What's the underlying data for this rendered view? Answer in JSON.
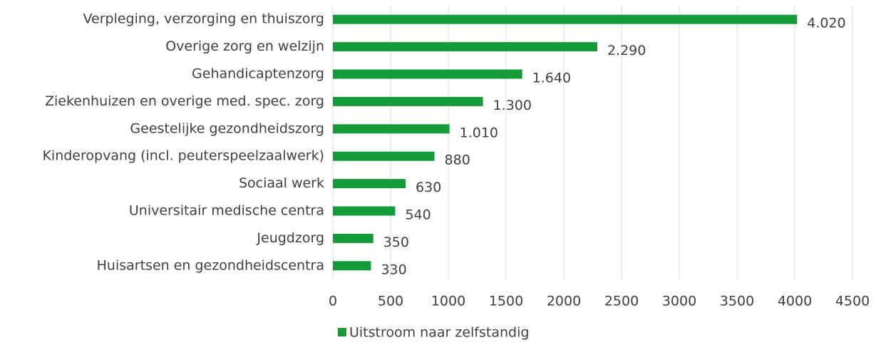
{
  "chart_data": {
    "type": "hbar",
    "categories": [
      "Verpleging, verzorging en thuiszorg",
      "Overige zorg en welzijn",
      "Gehandicaptenzorg",
      "Ziekenhuizen en overige med. spec. zorg",
      "Geestelijke gezondheidszorg",
      "Kinderopvang (incl. peuterspeelzaalwerk)",
      "Sociaal werk",
      "Universitair medische centra",
      "Jeugdzorg",
      "Huisartsen en gezondheidscentra"
    ],
    "series": [
      {
        "name": "Uitstroom naar zelfstandig",
        "color": "#149b3a",
        "values": [
          4020,
          2290,
          1640,
          1300,
          1010,
          880,
          630,
          540,
          350,
          330
        ],
        "value_labels": [
          "4.020",
          "2.290",
          "1.640",
          "1.300",
          "1.010",
          "880",
          "630",
          "540",
          "350",
          "330"
        ]
      }
    ],
    "xlim": [
      0,
      4500
    ],
    "xticks": [
      0,
      500,
      1000,
      1500,
      2000,
      2500,
      3000,
      3500,
      4000,
      4500
    ],
    "grid": true,
    "legend": "bottom"
  }
}
